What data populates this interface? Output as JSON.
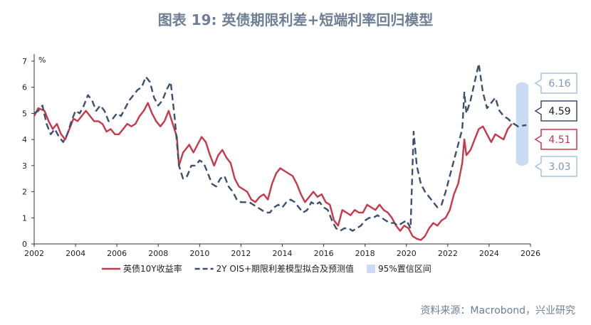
{
  "title": "图表 19: 英债期限利差+短端利率回归模型",
  "source": "资料来源：Macrobond，兴业研究",
  "chart_data": {
    "type": "line",
    "ylabel": "%",
    "xlim": [
      2002,
      2026
    ],
    "ylim": [
      0,
      7
    ],
    "x_ticks": [
      2002,
      2004,
      2006,
      2008,
      2010,
      2012,
      2014,
      2016,
      2018,
      2020,
      2022,
      2024,
      2026
    ],
    "y_ticks": [
      0,
      1,
      2,
      3,
      4,
      5,
      6,
      7
    ],
    "grid": false,
    "legend_position": "bottom",
    "series": [
      {
        "name": "英债10Y收益率",
        "color": "#c8374a",
        "style": "solid",
        "points": [
          [
            2002.0,
            4.9
          ],
          [
            2002.2,
            5.2
          ],
          [
            2002.5,
            5.1
          ],
          [
            2002.7,
            4.7
          ],
          [
            2002.9,
            4.4
          ],
          [
            2003.1,
            4.6
          ],
          [
            2003.3,
            4.2
          ],
          [
            2003.5,
            4.0
          ],
          [
            2003.7,
            4.4
          ],
          [
            2003.9,
            4.8
          ],
          [
            2004.1,
            4.7
          ],
          [
            2004.3,
            4.9
          ],
          [
            2004.5,
            5.1
          ],
          [
            2004.7,
            4.9
          ],
          [
            2004.9,
            4.7
          ],
          [
            2005.1,
            4.7
          ],
          [
            2005.3,
            4.6
          ],
          [
            2005.5,
            4.3
          ],
          [
            2005.7,
            4.4
          ],
          [
            2005.9,
            4.2
          ],
          [
            2006.1,
            4.2
          ],
          [
            2006.3,
            4.4
          ],
          [
            2006.5,
            4.6
          ],
          [
            2006.7,
            4.5
          ],
          [
            2006.9,
            4.6
          ],
          [
            2007.1,
            4.9
          ],
          [
            2007.3,
            5.1
          ],
          [
            2007.5,
            5.4
          ],
          [
            2007.7,
            5.0
          ],
          [
            2007.9,
            4.7
          ],
          [
            2008.1,
            4.5
          ],
          [
            2008.3,
            4.7
          ],
          [
            2008.5,
            5.1
          ],
          [
            2008.7,
            4.6
          ],
          [
            2008.9,
            4.1
          ],
          [
            2009.0,
            3.0
          ],
          [
            2009.2,
            3.5
          ],
          [
            2009.5,
            3.8
          ],
          [
            2009.7,
            3.5
          ],
          [
            2009.9,
            3.8
          ],
          [
            2010.1,
            4.1
          ],
          [
            2010.3,
            3.9
          ],
          [
            2010.5,
            3.4
          ],
          [
            2010.7,
            3.0
          ],
          [
            2010.9,
            3.4
          ],
          [
            2011.1,
            3.6
          ],
          [
            2011.3,
            3.3
          ],
          [
            2011.5,
            3.1
          ],
          [
            2011.7,
            2.5
          ],
          [
            2011.9,
            2.2
          ],
          [
            2012.1,
            2.1
          ],
          [
            2012.3,
            2.0
          ],
          [
            2012.5,
            1.7
          ],
          [
            2012.7,
            1.6
          ],
          [
            2012.9,
            1.8
          ],
          [
            2013.1,
            1.9
          ],
          [
            2013.3,
            1.7
          ],
          [
            2013.5,
            2.3
          ],
          [
            2013.7,
            2.7
          ],
          [
            2013.9,
            2.9
          ],
          [
            2014.1,
            2.8
          ],
          [
            2014.3,
            2.7
          ],
          [
            2014.5,
            2.6
          ],
          [
            2014.7,
            2.3
          ],
          [
            2014.9,
            1.9
          ],
          [
            2015.1,
            1.6
          ],
          [
            2015.3,
            1.8
          ],
          [
            2015.5,
            2.0
          ],
          [
            2015.7,
            1.8
          ],
          [
            2015.9,
            1.9
          ],
          [
            2016.1,
            1.6
          ],
          [
            2016.3,
            1.5
          ],
          [
            2016.5,
            0.9
          ],
          [
            2016.7,
            0.7
          ],
          [
            2016.9,
            1.3
          ],
          [
            2017.1,
            1.2
          ],
          [
            2017.3,
            1.1
          ],
          [
            2017.5,
            1.3
          ],
          [
            2017.7,
            1.2
          ],
          [
            2017.9,
            1.2
          ],
          [
            2018.1,
            1.5
          ],
          [
            2018.3,
            1.4
          ],
          [
            2018.5,
            1.3
          ],
          [
            2018.7,
            1.5
          ],
          [
            2018.9,
            1.3
          ],
          [
            2019.1,
            1.2
          ],
          [
            2019.3,
            1.0
          ],
          [
            2019.5,
            0.7
          ],
          [
            2019.7,
            0.5
          ],
          [
            2019.9,
            0.7
          ],
          [
            2020.1,
            0.6
          ],
          [
            2020.3,
            0.3
          ],
          [
            2020.5,
            0.2
          ],
          [
            2020.7,
            0.15
          ],
          [
            2020.9,
            0.3
          ],
          [
            2021.1,
            0.6
          ],
          [
            2021.3,
            0.8
          ],
          [
            2021.5,
            0.7
          ],
          [
            2021.7,
            0.9
          ],
          [
            2021.9,
            1.0
          ],
          [
            2022.1,
            1.3
          ],
          [
            2022.3,
            1.9
          ],
          [
            2022.5,
            2.3
          ],
          [
            2022.7,
            3.1
          ],
          [
            2022.8,
            4.0
          ],
          [
            2022.9,
            3.4
          ],
          [
            2023.1,
            3.6
          ],
          [
            2023.3,
            4.0
          ],
          [
            2023.5,
            4.4
          ],
          [
            2023.7,
            4.5
          ],
          [
            2023.9,
            4.2
          ],
          [
            2024.1,
            3.9
          ],
          [
            2024.3,
            4.2
          ],
          [
            2024.5,
            4.1
          ],
          [
            2024.7,
            4.0
          ],
          [
            2024.9,
            4.4
          ],
          [
            2025.1,
            4.6
          ]
        ]
      },
      {
        "name": "2Y OIS+期限利差模型拟合及预测值",
        "color": "#3c4f70",
        "style": "dashed",
        "points": [
          [
            2002.0,
            5.0
          ],
          [
            2002.2,
            5.1
          ],
          [
            2002.4,
            5.3
          ],
          [
            2002.6,
            4.6
          ],
          [
            2002.8,
            4.2
          ],
          [
            2003.0,
            4.4
          ],
          [
            2003.2,
            4.1
          ],
          [
            2003.4,
            3.9
          ],
          [
            2003.6,
            4.2
          ],
          [
            2003.8,
            4.7
          ],
          [
            2004.0,
            5.1
          ],
          [
            2004.2,
            5.0
          ],
          [
            2004.4,
            5.3
          ],
          [
            2004.6,
            5.7
          ],
          [
            2004.8,
            5.5
          ],
          [
            2005.0,
            5.1
          ],
          [
            2005.2,
            5.3
          ],
          [
            2005.4,
            5.1
          ],
          [
            2005.6,
            4.7
          ],
          [
            2005.8,
            4.8
          ],
          [
            2006.0,
            5.0
          ],
          [
            2006.2,
            4.9
          ],
          [
            2006.4,
            5.2
          ],
          [
            2006.6,
            5.5
          ],
          [
            2006.8,
            5.7
          ],
          [
            2007.0,
            5.9
          ],
          [
            2007.2,
            6.0
          ],
          [
            2007.4,
            6.4
          ],
          [
            2007.6,
            6.2
          ],
          [
            2007.8,
            5.6
          ],
          [
            2008.0,
            5.3
          ],
          [
            2008.2,
            5.5
          ],
          [
            2008.4,
            5.9
          ],
          [
            2008.6,
            6.2
          ],
          [
            2008.8,
            4.8
          ],
          [
            2009.0,
            3.0
          ],
          [
            2009.2,
            2.5
          ],
          [
            2009.4,
            2.6
          ],
          [
            2009.6,
            3.0
          ],
          [
            2009.8,
            3.0
          ],
          [
            2010.0,
            3.2
          ],
          [
            2010.2,
            3.1
          ],
          [
            2010.4,
            2.7
          ],
          [
            2010.6,
            2.3
          ],
          [
            2010.8,
            2.2
          ],
          [
            2011.0,
            2.5
          ],
          [
            2011.2,
            2.6
          ],
          [
            2011.4,
            2.2
          ],
          [
            2011.6,
            2.0
          ],
          [
            2011.8,
            1.7
          ],
          [
            2012.0,
            1.6
          ],
          [
            2012.2,
            1.6
          ],
          [
            2012.4,
            1.6
          ],
          [
            2012.6,
            1.5
          ],
          [
            2012.8,
            1.4
          ],
          [
            2013.0,
            1.3
          ],
          [
            2013.2,
            1.2
          ],
          [
            2013.4,
            1.2
          ],
          [
            2013.6,
            1.4
          ],
          [
            2013.8,
            1.5
          ],
          [
            2014.0,
            1.4
          ],
          [
            2014.2,
            1.6
          ],
          [
            2014.4,
            1.7
          ],
          [
            2014.6,
            1.6
          ],
          [
            2014.8,
            1.4
          ],
          [
            2015.0,
            1.2
          ],
          [
            2015.2,
            1.3
          ],
          [
            2015.4,
            1.6
          ],
          [
            2015.6,
            1.5
          ],
          [
            2015.8,
            1.6
          ],
          [
            2016.0,
            1.4
          ],
          [
            2016.2,
            1.3
          ],
          [
            2016.4,
            0.9
          ],
          [
            2016.6,
            0.6
          ],
          [
            2016.8,
            0.5
          ],
          [
            2017.0,
            0.6
          ],
          [
            2017.2,
            0.6
          ],
          [
            2017.4,
            0.5
          ],
          [
            2017.6,
            0.6
          ],
          [
            2017.8,
            0.7
          ],
          [
            2018.0,
            0.9
          ],
          [
            2018.2,
            1.0
          ],
          [
            2018.4,
            1.0
          ],
          [
            2018.6,
            1.1
          ],
          [
            2018.8,
            1.0
          ],
          [
            2019.0,
            0.9
          ],
          [
            2019.2,
            0.8
          ],
          [
            2019.4,
            0.8
          ],
          [
            2019.6,
            0.7
          ],
          [
            2019.8,
            0.8
          ],
          [
            2020.0,
            0.9
          ],
          [
            2020.2,
            0.6
          ],
          [
            2020.35,
            4.3
          ],
          [
            2020.5,
            3.0
          ],
          [
            2020.7,
            2.3
          ],
          [
            2020.9,
            2.0
          ],
          [
            2021.1,
            1.8
          ],
          [
            2021.3,
            1.6
          ],
          [
            2021.5,
            1.4
          ],
          [
            2021.7,
            1.5
          ],
          [
            2021.9,
            2.0
          ],
          [
            2022.1,
            2.6
          ],
          [
            2022.3,
            3.2
          ],
          [
            2022.5,
            3.8
          ],
          [
            2022.7,
            4.4
          ],
          [
            2022.8,
            5.8
          ],
          [
            2022.9,
            5.0
          ],
          [
            2023.1,
            5.5
          ],
          [
            2023.3,
            6.2
          ],
          [
            2023.5,
            6.9
          ],
          [
            2023.7,
            5.8
          ],
          [
            2023.9,
            5.2
          ],
          [
            2024.1,
            5.4
          ],
          [
            2024.3,
            5.6
          ],
          [
            2024.5,
            5.1
          ],
          [
            2024.7,
            4.9
          ],
          [
            2024.9,
            4.8
          ],
          [
            2025.1,
            4.65
          ],
          [
            2025.4,
            4.5
          ],
          [
            2025.8,
            4.55
          ]
        ]
      },
      {
        "name": "95%置信区间",
        "color": "#c9dcf2",
        "style": "band",
        "x_range": [
          2025.3,
          2025.9
        ],
        "upper": 6.16,
        "lower": 3.03
      }
    ],
    "annotations": [
      {
        "label": "6.16",
        "value": 6.16,
        "color": "#a8c3dc",
        "text_color": "#7f98b3"
      },
      {
        "label": "4.59",
        "value": 4.59,
        "color": "#3c4f70",
        "text_color": "#222222"
      },
      {
        "label": "4.51",
        "value": 4.51,
        "color": "#c8374a",
        "text_color": "#c8374a"
      },
      {
        "label": "3.03",
        "value": 3.03,
        "color": "#a8c3dc",
        "text_color": "#7f98b3"
      }
    ]
  }
}
